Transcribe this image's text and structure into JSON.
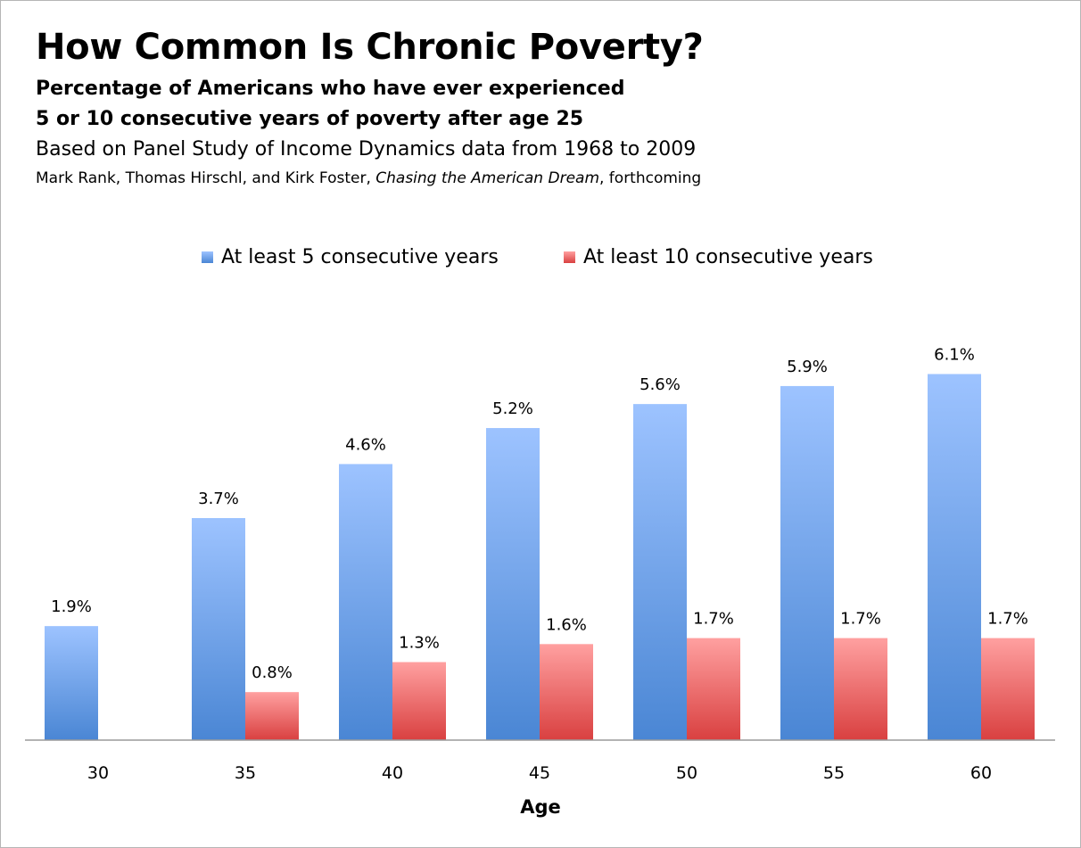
{
  "header": {
    "title": "How Common Is Chronic Poverty?",
    "subtitle_line1": "Percentage of Americans who have ever experienced",
    "subtitle_line2": "5 or 10 consecutive years of poverty after age 25",
    "source": "Based on Panel Study of Income Dynamics data from 1968 to 2009",
    "credit_pre": "Mark Rank, Thomas Hirschl, and Kirk Foster, ",
    "credit_book": "Chasing the American Dream",
    "credit_post": ", forthcoming"
  },
  "chart_data": {
    "type": "bar",
    "categories": [
      "30",
      "35",
      "40",
      "45",
      "50",
      "55",
      "60"
    ],
    "series": [
      {
        "name": "At least 5 consecutive years",
        "values": [
          1.9,
          3.7,
          4.6,
          5.2,
          5.6,
          5.9,
          6.1
        ],
        "labels": [
          "1.9%",
          "3.7%",
          "4.6%",
          "5.2%",
          "5.6%",
          "5.9%",
          "6.1%"
        ],
        "color_top": "#9dc3ff",
        "color_bottom": "#4a86d4"
      },
      {
        "name": "At least 10 consecutive years",
        "values": [
          null,
          0.8,
          1.3,
          1.6,
          1.7,
          1.7,
          1.7
        ],
        "labels": [
          "",
          "0.8%",
          "1.3%",
          "1.6%",
          "1.7%",
          "1.7%",
          "1.7%"
        ],
        "color_top": "#ffa0a0",
        "color_bottom": "#d94040"
      }
    ],
    "xlabel": "Age",
    "ylabel": "",
    "ylim": [
      0,
      6.4
    ],
    "grid": false,
    "legend_position": "top"
  }
}
